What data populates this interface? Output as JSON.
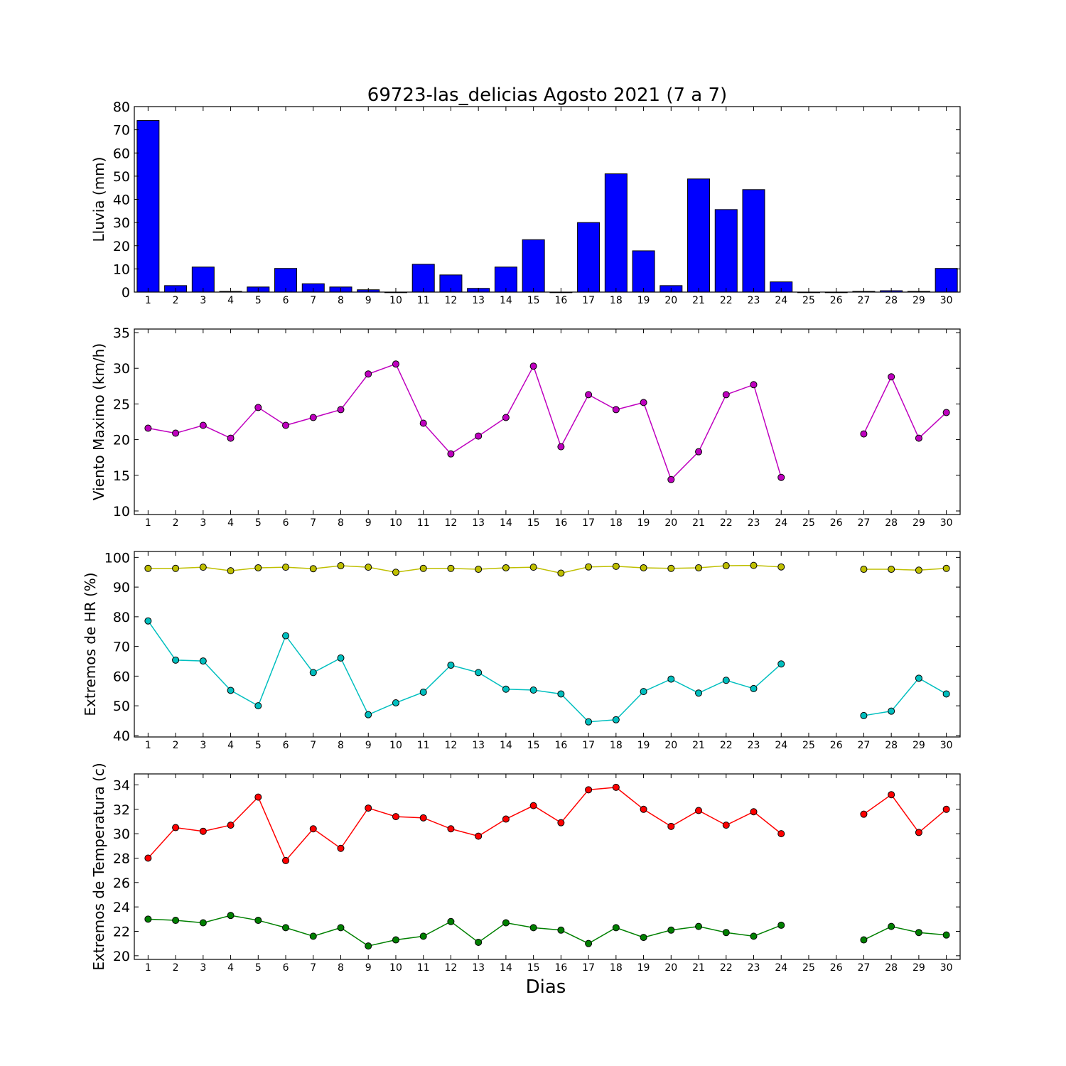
{
  "figure": {
    "title": "69723-las_delicias Agosto 2021  (7 a 7)",
    "xlabel": "Dias"
  },
  "colors": {
    "rain": "#0000ff",
    "wind": "#bf00bf",
    "hr_max": "#bfbf00",
    "hr_min": "#00bfbf",
    "temp_max": "#ff0000",
    "temp_min": "#008000"
  },
  "chart_data": [
    {
      "type": "bar",
      "ylabel": "Lluvia (mm)",
      "ylim": [
        0,
        80
      ],
      "yticks": [
        0,
        10,
        20,
        30,
        40,
        50,
        60,
        70,
        80
      ],
      "categories": [
        1,
        2,
        3,
        4,
        5,
        6,
        7,
        8,
        9,
        10,
        11,
        12,
        13,
        14,
        15,
        16,
        17,
        18,
        19,
        20,
        21,
        22,
        23,
        24,
        25,
        26,
        27,
        28,
        29,
        30
      ],
      "series": [
        {
          "values": [
            74,
            2.8,
            10.8,
            0.3,
            2.2,
            10.2,
            3.6,
            2.2,
            1,
            0,
            12,
            7.4,
            1.6,
            10.8,
            22.6,
            0,
            30,
            51,
            17.8,
            2.8,
            48.8,
            35.6,
            44.2,
            4.4,
            0,
            0,
            0.3,
            0.6,
            0.3,
            10.2
          ],
          "color": "#0000ff"
        }
      ]
    },
    {
      "type": "line",
      "ylabel": "Viento Maximo (km/h)",
      "ylim": [
        9.5,
        35.5
      ],
      "yticks": [
        10,
        15,
        20,
        25,
        30,
        35
      ],
      "categories": [
        1,
        2,
        3,
        4,
        5,
        6,
        7,
        8,
        9,
        10,
        11,
        12,
        13,
        14,
        15,
        16,
        17,
        18,
        19,
        20,
        21,
        22,
        23,
        24,
        25,
        26,
        27,
        28,
        29,
        30
      ],
      "series": [
        {
          "values": [
            21.6,
            20.9,
            22,
            20.2,
            24.5,
            22,
            23.1,
            24.2,
            29.2,
            30.6,
            22.3,
            18,
            20.5,
            23.1,
            30.3,
            19,
            26.3,
            24.2,
            25.2,
            14.4,
            18.3,
            26.3,
            27.7,
            14.7,
            null,
            null,
            20.8,
            28.8,
            20.2,
            23.8
          ],
          "color": "#bf00bf"
        }
      ]
    },
    {
      "type": "line",
      "ylabel": "Extremos de HR (%)",
      "ylim": [
        39.5,
        102
      ],
      "yticks": [
        40,
        50,
        60,
        70,
        80,
        90,
        100
      ],
      "categories": [
        1,
        2,
        3,
        4,
        5,
        6,
        7,
        8,
        9,
        10,
        11,
        12,
        13,
        14,
        15,
        16,
        17,
        18,
        19,
        20,
        21,
        22,
        23,
        24,
        25,
        26,
        27,
        28,
        29,
        30
      ],
      "series": [
        {
          "values": [
            96.3,
            96.3,
            96.7,
            95.5,
            96.5,
            96.7,
            96.2,
            97.2,
            96.7,
            95,
            96.3,
            96.3,
            96,
            96.5,
            96.7,
            94.7,
            96.8,
            97,
            96.5,
            96.3,
            96.5,
            97.2,
            97.3,
            96.8,
            null,
            null,
            96,
            96,
            95.7,
            96.3
          ],
          "color": "#bfbf00"
        },
        {
          "values": [
            78.6,
            65.4,
            65.1,
            55.2,
            50,
            73.6,
            61.2,
            66.1,
            47,
            51,
            54.6,
            63.7,
            61.2,
            55.6,
            55.3,
            54,
            44.6,
            45.3,
            54.8,
            59,
            54.3,
            58.6,
            55.8,
            64.1,
            null,
            null,
            46.7,
            48.2,
            59.3,
            54
          ]
        }
      ]
    },
    {
      "type": "line",
      "ylabel": "Extremos de Temperatura (c)",
      "ylim": [
        19.7,
        34.9
      ],
      "yticks": [
        20,
        22,
        24,
        26,
        28,
        30,
        32,
        34
      ],
      "categories": [
        1,
        2,
        3,
        4,
        5,
        6,
        7,
        8,
        9,
        10,
        11,
        12,
        13,
        14,
        15,
        16,
        17,
        18,
        19,
        20,
        21,
        22,
        23,
        24,
        25,
        26,
        27,
        28,
        29,
        30
      ],
      "series": [
        {
          "values": [
            28,
            30.5,
            30.2,
            30.7,
            33,
            27.8,
            30.4,
            28.8,
            32.1,
            31.4,
            31.3,
            30.4,
            29.8,
            31.2,
            32.3,
            30.9,
            33.6,
            33.8,
            32,
            30.6,
            31.9,
            30.7,
            31.8,
            30,
            null,
            null,
            31.6,
            33.2,
            30.1,
            32
          ],
          "color": "#ff0000"
        },
        {
          "values": [
            23,
            22.9,
            22.7,
            23.3,
            22.9,
            22.3,
            21.6,
            22.3,
            20.8,
            21.3,
            21.6,
            22.8,
            21.1,
            22.7,
            22.3,
            22.1,
            21,
            22.3,
            21.5,
            22.1,
            22.4,
            21.9,
            21.6,
            22.5,
            null,
            null,
            21.3,
            22.4,
            21.9,
            21.7
          ],
          "color": "#008000"
        }
      ]
    }
  ]
}
